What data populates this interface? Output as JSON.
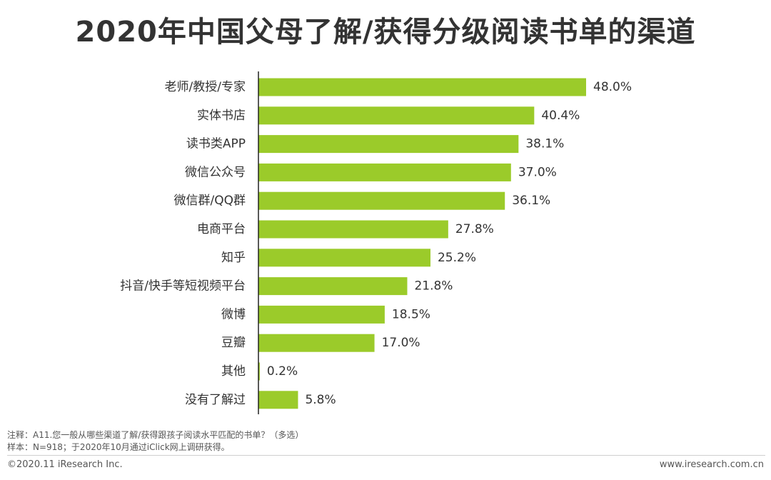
{
  "colors": {
    "bar": "#9BCB2A",
    "axis": "#222222",
    "text": "#333333"
  },
  "chart_data": {
    "type": "bar",
    "orientation": "horizontal",
    "title": "2020年中国父母了解/获得分级阅读书单的渠道",
    "categories": [
      "老师/教授/专家",
      "实体书店",
      "读书类APP",
      "微信公众号",
      "微信群/QQ群",
      "电商平台",
      "知乎",
      "抖音/快手等短视频平台",
      "微博",
      "豆瓣",
      "其他",
      "没有了解过"
    ],
    "values": [
      48.0,
      40.4,
      38.1,
      37.0,
      36.1,
      27.8,
      25.2,
      21.8,
      18.5,
      17.0,
      0.2,
      5.8
    ],
    "value_labels": [
      "48.0%",
      "40.4%",
      "38.1%",
      "37.0%",
      "36.1%",
      "27.8%",
      "25.2%",
      "21.8%",
      "18.5%",
      "17.0%",
      "0.2%",
      "5.8%"
    ],
    "unit": "%",
    "xlim": [
      0,
      48.0
    ],
    "grid": false,
    "legend": "none"
  },
  "notes": {
    "note_line": "注释：A11.您一般从哪些渠道了解/获得跟孩子阅读水平匹配的书单？（多选）",
    "sample_line": "样本：N=918；于2020年10月通过iClick网上调研获得。"
  },
  "footer": {
    "copyright": "©2020.11 iResearch Inc.",
    "website": "www.iresearch.com.cn"
  }
}
